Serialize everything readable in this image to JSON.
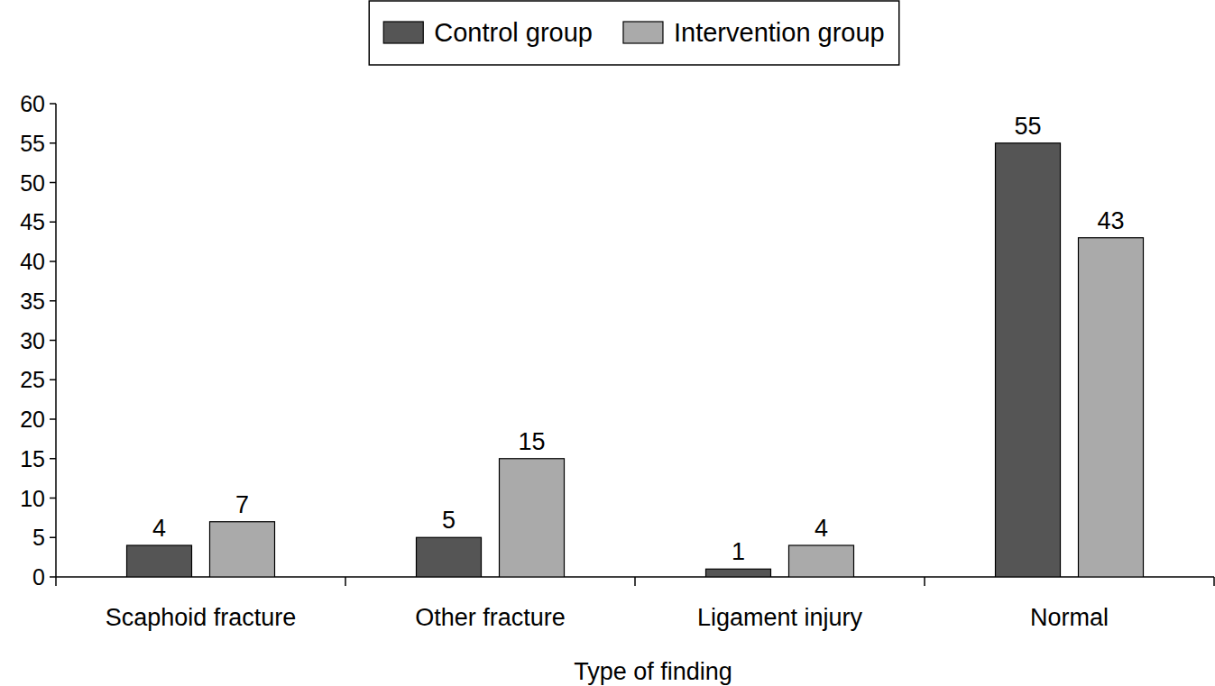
{
  "chart_data": {
    "type": "bar",
    "x_label": "Type of finding",
    "categories": [
      "Scaphoid fracture",
      "Other fracture",
      "Ligament injury",
      "Normal"
    ],
    "series": [
      {
        "name": "Control group",
        "color": "#555555",
        "values": [
          4,
          5,
          1,
          55
        ]
      },
      {
        "name": "Intervention group",
        "color": "#aaaaaa",
        "values": [
          7,
          15,
          4,
          43
        ]
      }
    ],
    "ylim": [
      0,
      60
    ],
    "yticks": [
      0,
      5,
      10,
      15,
      20,
      25,
      30,
      35,
      40,
      45,
      50,
      55,
      60
    ],
    "grid": false,
    "legend": "top",
    "data_labels": true
  }
}
